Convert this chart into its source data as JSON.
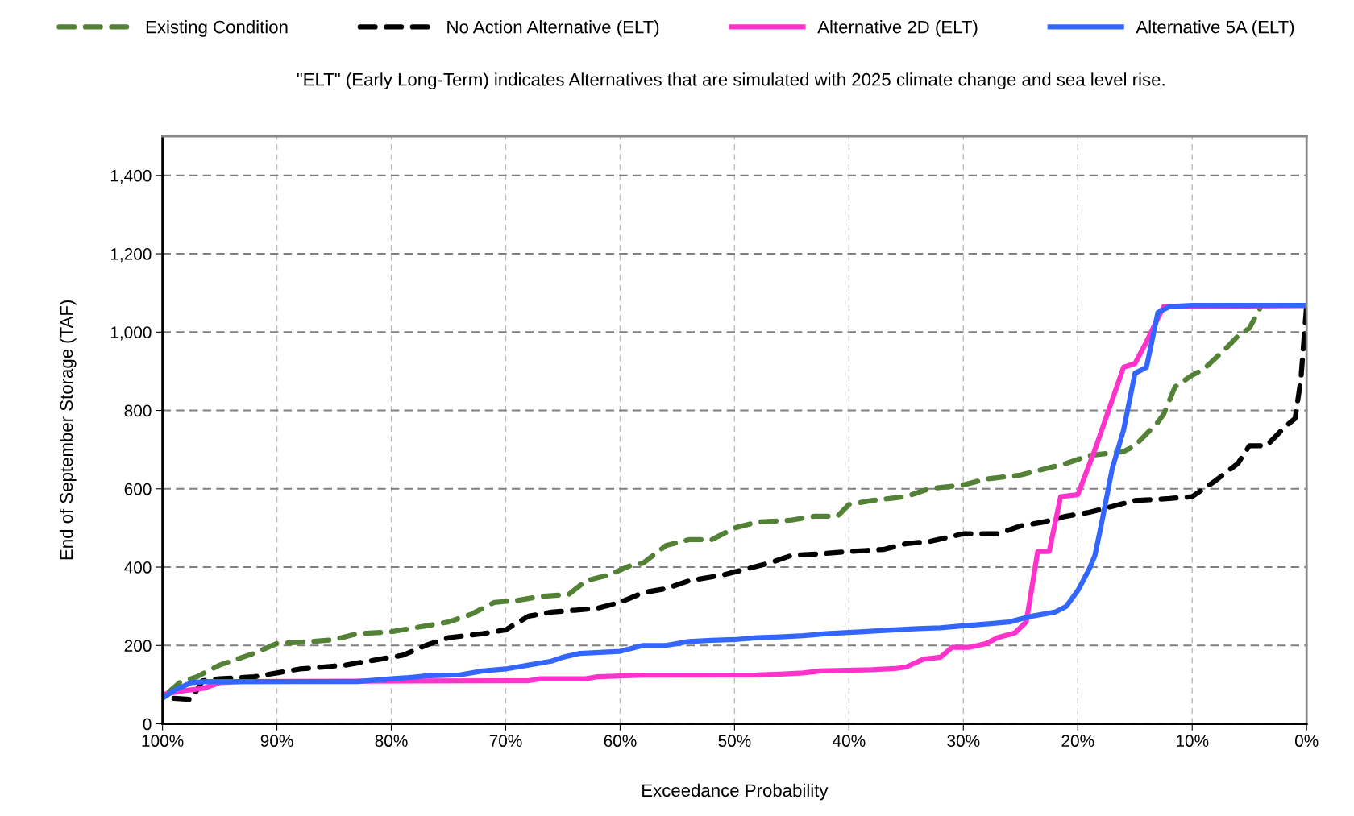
{
  "chart_data": {
    "type": "line",
    "subtitle": "\"ELT\" (Early Long-Term) indicates Alternatives that are simulated with 2025 climate change and sea level rise.",
    "xlabel": "Exceedance Probability",
    "ylabel": "End of September Storage (TAF)",
    "xlim": [
      100,
      0
    ],
    "xticks": [
      {
        "value": 100,
        "label": "100%"
      },
      {
        "value": 90,
        "label": "90%"
      },
      {
        "value": 80,
        "label": "80%"
      },
      {
        "value": 70,
        "label": "70%"
      },
      {
        "value": 60,
        "label": "60%"
      },
      {
        "value": 50,
        "label": "50%"
      },
      {
        "value": 40,
        "label": "40%"
      },
      {
        "value": 30,
        "label": "30%"
      },
      {
        "value": 20,
        "label": "20%"
      },
      {
        "value": 10,
        "label": "10%"
      },
      {
        "value": 0,
        "label": "0%"
      }
    ],
    "ylim": [
      0,
      1500
    ],
    "yticks": [
      0,
      200,
      400,
      600,
      800,
      {
        "value": 1000,
        "label": "1,000"
      },
      {
        "value": 1200,
        "label": "1,200"
      },
      {
        "value": 1400,
        "label": "1,400"
      }
    ],
    "grid": true,
    "legend": "top",
    "marker": "none",
    "series": [
      {
        "name": "Existing Condition",
        "color": "#538135",
        "line_style": "dashed",
        "x": [
          99.5,
          98.5,
          97,
          95,
          92,
          90,
          87,
          85,
          83,
          80,
          78,
          75,
          73,
          71,
          69,
          67,
          64.5,
          63,
          61,
          59,
          58,
          56,
          54,
          52,
          50,
          48,
          45,
          43,
          41,
          40,
          38,
          35,
          33,
          30,
          28,
          25,
          23,
          21,
          19,
          16,
          15,
          13,
          12.5,
          11.5,
          10,
          9,
          7,
          6,
          5,
          4
        ],
        "values": [
          80,
          105,
          120,
          150,
          180,
          205,
          210,
          215,
          230,
          235,
          245,
          260,
          280,
          310,
          315,
          325,
          330,
          365,
          380,
          405,
          410,
          455,
          470,
          470,
          500,
          515,
          520,
          530,
          530,
          560,
          570,
          580,
          600,
          610,
          625,
          635,
          650,
          665,
          685,
          695,
          710,
          770,
          790,
          860,
          890,
          905,
          960,
          990,
          1010,
          1065
        ]
      },
      {
        "name": "No Action Alternative (ELT)",
        "color": "#000000",
        "line_style": "dashed",
        "x": [
          99,
          97.5,
          96.5,
          95,
          92,
          90,
          88,
          86,
          84,
          81,
          79,
          77,
          75,
          72,
          70,
          68,
          66,
          64,
          62,
          60,
          58,
          56,
          54,
          51,
          49,
          47,
          45,
          42,
          40,
          37,
          35,
          33,
          30,
          27,
          25,
          23,
          21,
          19,
          17,
          15,
          12,
          10,
          8,
          6,
          5,
          3.5,
          2,
          1,
          0.5,
          0
        ],
        "values": [
          65,
          62,
          110,
          115,
          120,
          130,
          140,
          145,
          150,
          165,
          175,
          200,
          220,
          230,
          240,
          275,
          285,
          290,
          295,
          310,
          335,
          345,
          365,
          380,
          395,
          410,
          430,
          435,
          440,
          445,
          460,
          465,
          485,
          485,
          505,
          515,
          530,
          540,
          555,
          570,
          575,
          580,
          620,
          665,
          710,
          710,
          755,
          780,
          880,
          1068
        ]
      },
      {
        "name": "Alternative 2D (ELT)",
        "color": "#ff33cc",
        "line_style": "solid",
        "x": [
          100,
          98,
          96.5,
          95,
          93,
          70,
          68,
          67,
          63,
          62,
          58,
          48,
          46,
          44,
          42.5,
          38,
          36,
          35,
          33.5,
          32,
          31,
          29.5,
          28,
          27,
          25.5,
          24.5,
          23.5,
          22.5,
          21.5,
          20,
          18.5,
          16,
          15,
          14,
          12.5,
          0
        ],
        "values": [
          75,
          85,
          90,
          105,
          108,
          110,
          110,
          115,
          115,
          120,
          124,
          125,
          127,
          130,
          135,
          138,
          141,
          145,
          165,
          170,
          195,
          195,
          205,
          220,
          232,
          260,
          440,
          440,
          580,
          585,
          700,
          910,
          920,
          975,
          1065,
          1068
        ]
      },
      {
        "name": "Alternative 5A (ELT)",
        "color": "#3366ff",
        "line_style": "solid",
        "x": [
          100,
          99,
          97.5,
          96,
          83,
          80,
          78.5,
          77,
          74,
          72,
          70,
          68,
          66,
          65,
          63.5,
          60,
          58,
          56,
          54,
          52,
          50,
          48,
          46,
          44,
          42,
          39,
          36,
          34,
          32,
          30,
          28,
          26,
          24,
          22,
          21,
          20,
          19,
          18.5,
          18,
          17,
          16,
          15,
          14,
          13,
          12,
          10,
          0
        ],
        "values": [
          65,
          85,
          105,
          108,
          108,
          115,
          118,
          122,
          125,
          135,
          140,
          150,
          160,
          170,
          180,
          185,
          200,
          200,
          210,
          213,
          215,
          220,
          222,
          225,
          230,
          235,
          240,
          243,
          245,
          250,
          255,
          260,
          275,
          285,
          300,
          340,
          395,
          430,
          500,
          650,
          750,
          895,
          910,
          1050,
          1065,
          1068,
          1068
        ]
      }
    ]
  }
}
